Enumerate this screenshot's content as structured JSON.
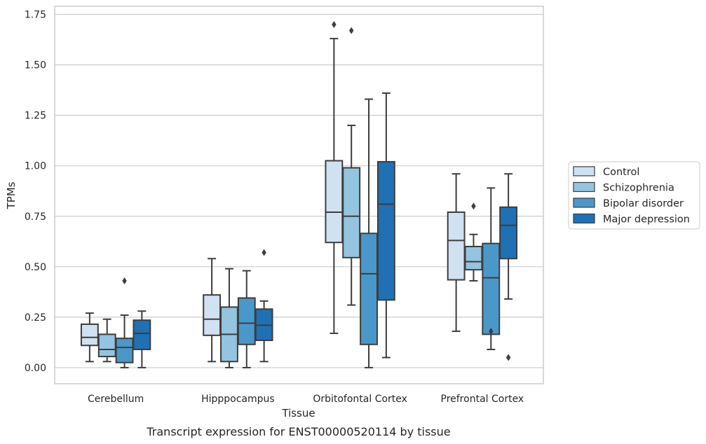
{
  "caption": "Transcript expression for ENST00000520114 by tissue",
  "chart_data": {
    "type": "box",
    "xlabel": "Tissue",
    "ylabel": "TPMs",
    "ylim": [
      -0.08,
      1.79
    ],
    "yticks": [
      "0.00",
      "0.25",
      "0.50",
      "0.75",
      "1.00",
      "1.25",
      "1.50",
      "1.75"
    ],
    "ytick_values": [
      0,
      0.25,
      0.5,
      0.75,
      1.0,
      1.25,
      1.5,
      1.75
    ],
    "grid": "horizontal",
    "legend_position": "right",
    "categories": [
      "Cerebellum",
      "Hipppocampus",
      "Orbitofontal Cortex",
      "Prefrontal Cortex"
    ],
    "series": [
      {
        "name": "Control",
        "color": "#d0e1f2",
        "boxes": [
          {
            "whislo": 0.03,
            "q1": 0.11,
            "med": 0.15,
            "q3": 0.215,
            "whishi": 0.27,
            "fliers": []
          },
          {
            "whislo": 0.03,
            "q1": 0.16,
            "med": 0.24,
            "q3": 0.36,
            "whishi": 0.54,
            "fliers": []
          },
          {
            "whislo": 0.17,
            "q1": 0.62,
            "med": 0.77,
            "q3": 1.025,
            "whishi": 1.63,
            "fliers": [
              1.7
            ]
          },
          {
            "whislo": 0.18,
            "q1": 0.435,
            "med": 0.63,
            "q3": 0.77,
            "whishi": 0.96,
            "fliers": []
          }
        ]
      },
      {
        "name": "Schizophrenia",
        "color": "#94c4df",
        "boxes": [
          {
            "whislo": 0.03,
            "q1": 0.055,
            "med": 0.09,
            "q3": 0.165,
            "whishi": 0.24,
            "fliers": []
          },
          {
            "whislo": 0.0,
            "q1": 0.03,
            "med": 0.165,
            "q3": 0.3,
            "whishi": 0.49,
            "fliers": []
          },
          {
            "whislo": 0.31,
            "q1": 0.545,
            "med": 0.75,
            "q3": 0.99,
            "whishi": 1.2,
            "fliers": [
              1.67
            ]
          },
          {
            "whislo": 0.43,
            "q1": 0.485,
            "med": 0.525,
            "q3": 0.6,
            "whishi": 0.66,
            "fliers": [
              0.8
            ]
          }
        ]
      },
      {
        "name": "Bipolar disorder",
        "color": "#4a98c9",
        "boxes": [
          {
            "whislo": 0.0,
            "q1": 0.025,
            "med": 0.1,
            "q3": 0.145,
            "whishi": 0.26,
            "fliers": [
              0.43
            ]
          },
          {
            "whislo": 0.0,
            "q1": 0.115,
            "med": 0.22,
            "q3": 0.345,
            "whishi": 0.48,
            "fliers": []
          },
          {
            "whislo": 0.0,
            "q1": 0.115,
            "med": 0.465,
            "q3": 0.665,
            "whishi": 1.33,
            "fliers": []
          },
          {
            "whislo": 0.09,
            "q1": 0.165,
            "med": 0.445,
            "q3": 0.615,
            "whishi": 0.89,
            "fliers": [
              0.18
            ]
          }
        ]
      },
      {
        "name": "Major depression",
        "color": "#2070b4",
        "boxes": [
          {
            "whislo": 0.0,
            "q1": 0.09,
            "med": 0.17,
            "q3": 0.235,
            "whishi": 0.28,
            "fliers": []
          },
          {
            "whislo": 0.03,
            "q1": 0.135,
            "med": 0.21,
            "q3": 0.29,
            "whishi": 0.33,
            "fliers": [
              0.57
            ]
          },
          {
            "whislo": 0.05,
            "q1": 0.335,
            "med": 0.81,
            "q3": 1.02,
            "whishi": 1.36,
            "fliers": []
          },
          {
            "whislo": 0.34,
            "q1": 0.54,
            "med": 0.705,
            "q3": 0.795,
            "whishi": 0.96,
            "fliers": [
              0.05
            ]
          }
        ]
      }
    ]
  }
}
